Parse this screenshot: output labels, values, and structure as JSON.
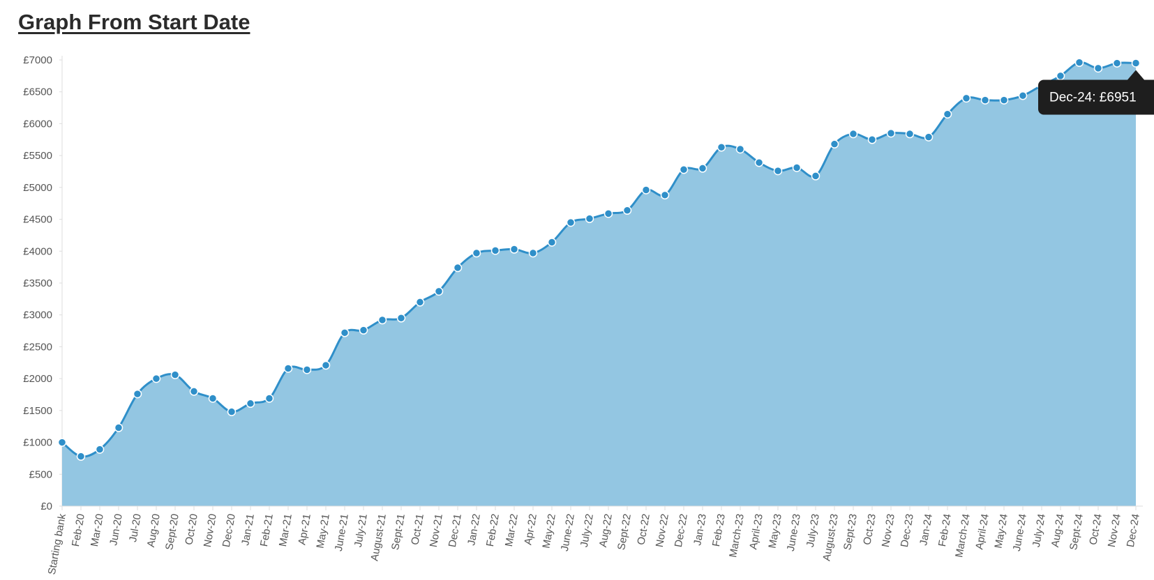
{
  "chart_data": {
    "type": "area",
    "title": "Graph From Start Date",
    "categories": [
      "Starting bank",
      "Feb-20",
      "Mar-20",
      "Jun-20",
      "Jul-20",
      "Aug-20",
      "Sept-20",
      "Oct-20",
      "Nov-20",
      "Dec-20",
      "Jan-21",
      "Feb-21",
      "Mar-21",
      "Apr-21",
      "May-21",
      "June-21",
      "July-21",
      "August-21",
      "Sept-21",
      "Oct-21",
      "Nov-21",
      "Dec-21",
      "Jan-22",
      "Feb-22",
      "Mar-22",
      "Apr-22",
      "May-22",
      "June-22",
      "July-22",
      "Aug-22",
      "Sept-22",
      "Oct-22",
      "Nov-22",
      "Dec-22",
      "Jan-23",
      "Feb-23",
      "March-23",
      "April-23",
      "May-23",
      "June-23",
      "July-23",
      "August-23",
      "Sept-23",
      "Oct-23",
      "Nov-23",
      "Dec-23",
      "Jan-24",
      "Feb-24",
      "March-24",
      "April-24",
      "May-24",
      "June-24",
      "July-24",
      "Aug-24",
      "Sept-24",
      "Oct-24",
      "Nov-24",
      "Dec-24"
    ],
    "values": [
      1000,
      780,
      890,
      1230,
      1760,
      2000,
      2060,
      1800,
      1690,
      1480,
      1610,
      1690,
      2160,
      2140,
      2210,
      2720,
      2760,
      2920,
      2950,
      3200,
      3370,
      3740,
      3970,
      4010,
      4030,
      3970,
      4140,
      4450,
      4510,
      4590,
      4640,
      4960,
      4880,
      5280,
      5300,
      5630,
      5600,
      5390,
      5260,
      5310,
      5180,
      5680,
      5840,
      5750,
      5850,
      5840,
      5790,
      6150,
      6400,
      6370,
      6370,
      6440,
      6600,
      6750,
      6960,
      6870,
      6950,
      6951
    ],
    "color": "#2f8fc9",
    "fill": "#93c6e2",
    "ylim": [
      0,
      7000
    ],
    "yticks": [
      {
        "value": 0,
        "label": "£0"
      },
      {
        "value": 500,
        "label": "£500"
      },
      {
        "value": 1000,
        "label": "£1000"
      },
      {
        "value": 1500,
        "label": "£1500"
      },
      {
        "value": 2000,
        "label": "£2000"
      },
      {
        "value": 2500,
        "label": "£2500"
      },
      {
        "value": 3000,
        "label": "£3000"
      },
      {
        "value": 3500,
        "label": "£3500"
      },
      {
        "value": 4000,
        "label": "£4000"
      },
      {
        "value": 4500,
        "label": "£4500"
      },
      {
        "value": 5000,
        "label": "£5000"
      },
      {
        "value": 5500,
        "label": "£5500"
      },
      {
        "value": 6000,
        "label": "£6000"
      },
      {
        "value": 6500,
        "label": "£6500"
      },
      {
        "value": 7000,
        "label": "£7000"
      }
    ],
    "tooltip": "Dec-24: £6951"
  }
}
